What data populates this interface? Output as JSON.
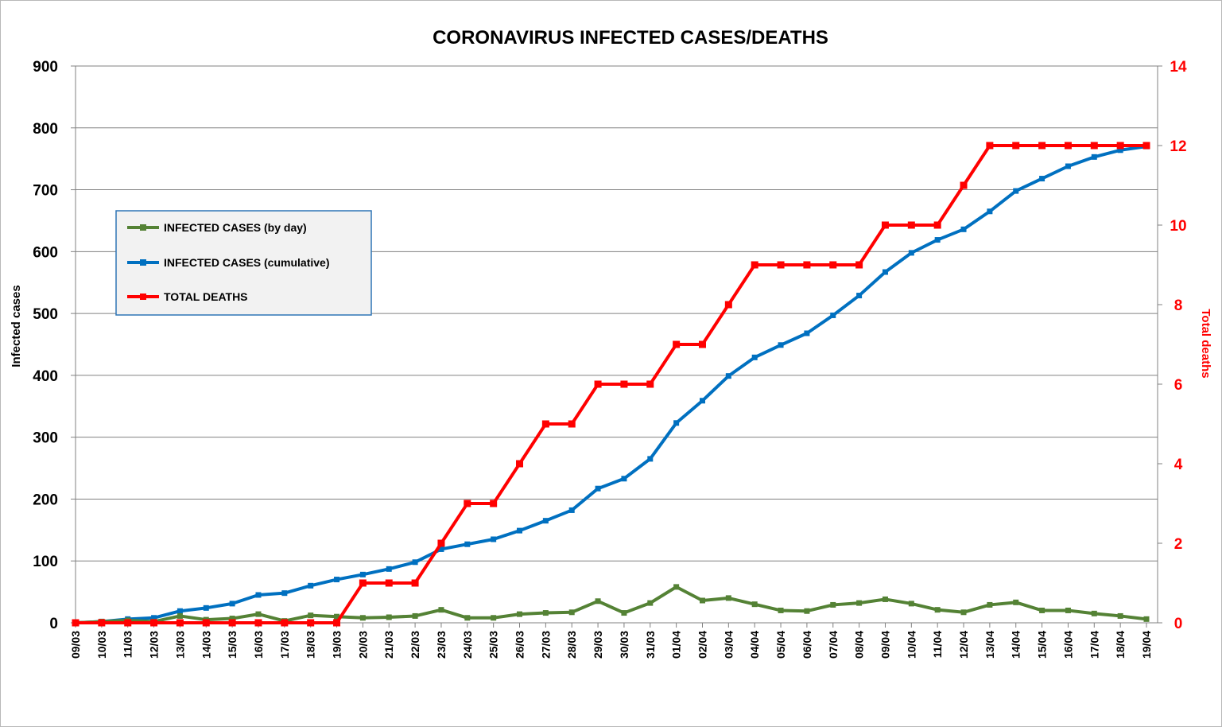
{
  "chart_data": {
    "type": "line",
    "title": "CORONAVIRUS INFECTED CASES/DEATHS",
    "ylabel": "Infected cases",
    "y2label": "Total deaths",
    "ylim": [
      0,
      900
    ],
    "y2lim": [
      0,
      14
    ],
    "yticks": [
      "0",
      "100",
      "200",
      "300",
      "400",
      "500",
      "600",
      "700",
      "800",
      "900"
    ],
    "y2ticks": [
      "0",
      "2",
      "4",
      "6",
      "8",
      "10",
      "12",
      "14"
    ],
    "grid": true,
    "legend_position": "upper-left",
    "categories": [
      "09/03",
      "10/03",
      "11/03",
      "12/03",
      "13/03",
      "14/03",
      "15/03",
      "16/03",
      "17/03",
      "18/03",
      "19/03",
      "20/03",
      "21/03",
      "22/03",
      "23/03",
      "24/03",
      "25/03",
      "26/03",
      "27/03",
      "28/03",
      "29/03",
      "30/03",
      "31/03",
      "01/04",
      "02/04",
      "03/04",
      "04/04",
      "05/04",
      "06/04",
      "07/04",
      "08/04",
      "09/04",
      "10/04",
      "11/04",
      "12/04",
      "13/04",
      "14/04",
      "15/04",
      "16/04",
      "17/04",
      "18/04",
      "19/04"
    ],
    "series": [
      {
        "name": "INFECTED CASES (by day)",
        "axis": "left",
        "color": "#548235",
        "values": [
          0,
          2,
          4,
          2,
          11,
          5,
          7,
          14,
          3,
          12,
          10,
          8,
          9,
          11,
          21,
          8,
          8,
          14,
          16,
          17,
          35,
          16,
          32,
          58,
          36,
          40,
          30,
          20,
          19,
          29,
          32,
          38,
          31,
          21,
          17,
          29,
          33,
          20,
          20,
          15,
          11,
          6
        ]
      },
      {
        "name": "INFECTED CASES (cumulative)",
        "axis": "left",
        "color": "#0070c0",
        "values": [
          0,
          2,
          6,
          8,
          19,
          24,
          31,
          45,
          48,
          60,
          70,
          78,
          87,
          98,
          119,
          127,
          135,
          149,
          165,
          182,
          217,
          233,
          265,
          323,
          359,
          399,
          429,
          449,
          468,
          497,
          529,
          567,
          598,
          619,
          636,
          665,
          698,
          718,
          738,
          753,
          764,
          770
        ]
      },
      {
        "name": "TOTAL DEATHS",
        "axis": "right",
        "color": "#ff0000",
        "values": [
          0,
          0,
          0,
          0,
          0,
          0,
          0,
          0,
          0,
          0,
          0,
          1,
          1,
          1,
          2,
          3,
          3,
          4,
          5,
          5,
          6,
          6,
          6,
          7,
          7,
          8,
          9,
          9,
          9,
          9,
          9,
          10,
          10,
          10,
          11,
          12,
          12,
          12,
          12,
          12,
          12,
          12
        ]
      }
    ]
  }
}
